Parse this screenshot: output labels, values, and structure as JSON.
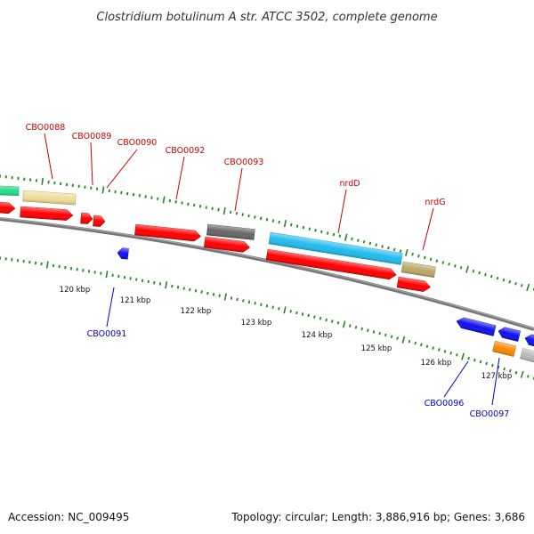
{
  "title": "Clostridium botulinum A str. ATCC 3502, complete genome",
  "footer": {
    "accession": "Accession: NC_009495",
    "topology": "Topology: circular; Length: 3,886,916 bp; Genes: 3,686"
  },
  "colors": {
    "forward_label": "#cc0000",
    "reverse_label": "#0000cc",
    "tick": "#228822",
    "backbone": "#777777"
  },
  "kbp_labels": [
    "120 kbp",
    "121 kbp",
    "122 kbp",
    "123 kbp",
    "124 kbp",
    "125 kbp",
    "126 kbp",
    "127 kbp"
  ],
  "gene_labels": {
    "forward": [
      "CBO0088",
      "CBO0089",
      "CBO0090",
      "CBO0092",
      "CBO0093",
      "nrdD",
      "nrdG"
    ],
    "reverse": [
      "CBO0091",
      "CBO0096",
      "CBO0097"
    ]
  },
  "feature_colors": [
    "#22dd88",
    "#eedd99",
    "#ff0000",
    "#666666",
    "#22bbee",
    "#bbaa66",
    "#1111ee",
    "#ff8800",
    "#bbbbbb"
  ]
}
